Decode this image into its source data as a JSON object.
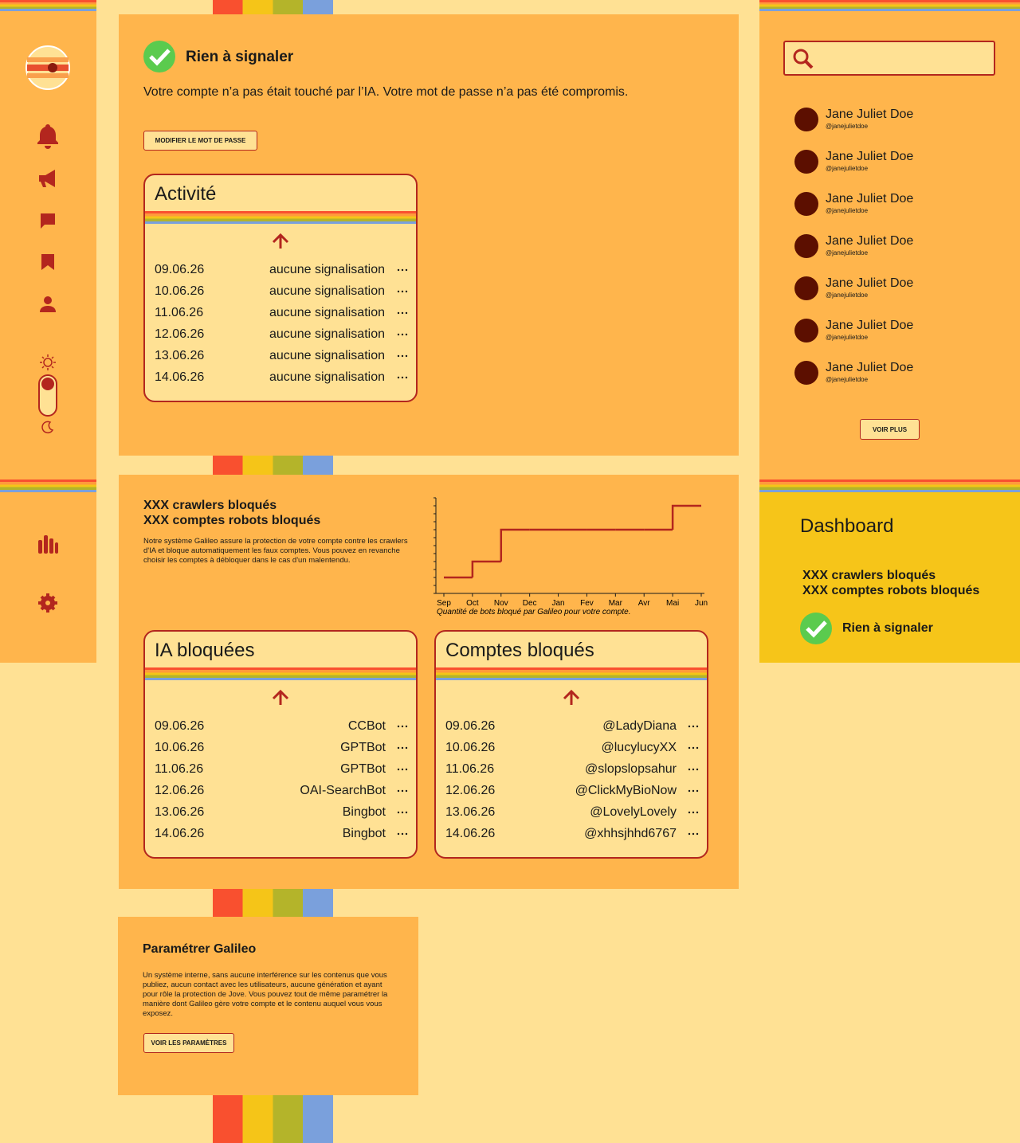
{
  "status": {
    "title": "Rien à signaler",
    "message": "Votre compte n’a pas était touché par l’IA. Votre mot de passe n’a pas été compromis.",
    "button": "MODIFIER LE MOT DE PASSE"
  },
  "activity": {
    "title": "Activité",
    "rows": [
      [
        "09.06.26",
        "aucune signalisation"
      ],
      [
        "10.06.26",
        "aucune signalisation"
      ],
      [
        "11.06.26",
        "aucune signalisation"
      ],
      [
        "12.06.26",
        "aucune signalisation"
      ],
      [
        "13.06.26",
        "aucune signalisation"
      ],
      [
        "14.06.26",
        "aucune signalisation"
      ]
    ]
  },
  "blocked": {
    "crawlers": "XXX crawlers bloqués",
    "bots": "XXX comptes robots bloqués",
    "description": "Notre système Galileo assure la protection de votre compte contre les crawlers d'IA et bloque automatiquement les faux comptes. Vous pouvez en revanche choisir les comptes à débloquer dans le cas d'un malentendu."
  },
  "chart_data": {
    "type": "line",
    "drawstyle": "steps-post",
    "caption": "Quantité de bots bloqué par Galileo pour votre compte.",
    "categories": [
      "Sep",
      "Oct",
      "Nov",
      "Dec",
      "Jan",
      "Fev",
      "Mar",
      "Avr",
      "Mai",
      "Jun"
    ],
    "values": [
      2,
      4,
      8,
      8,
      8,
      8,
      8,
      8,
      11,
      11
    ],
    "color": "#b3261e",
    "ylim": [
      0,
      12
    ],
    "yticks": [
      0,
      1,
      2,
      3,
      4,
      5,
      6,
      7,
      8,
      9,
      10,
      11,
      12
    ]
  },
  "ia_table": {
    "title": "IA bloquées",
    "rows": [
      [
        "09.06.26",
        "CCBot"
      ],
      [
        "10.06.26",
        "GPTBot"
      ],
      [
        "11.06.26",
        "GPTBot"
      ],
      [
        "12.06.26",
        "OAI-SearchBot"
      ],
      [
        "13.06.26",
        "Bingbot"
      ],
      [
        "14.06.26",
        "Bingbot"
      ]
    ]
  },
  "accounts_table": {
    "title": "Comptes bloqués",
    "rows": [
      [
        "09.06.26",
        "@LadyDiana"
      ],
      [
        "10.06.26",
        "@lucylucyXX"
      ],
      [
        "11.06.26",
        "@slopslopsahur"
      ],
      [
        "12.06.26",
        "@ClickMyBioNow"
      ],
      [
        "13.06.26",
        "@LovelyLovely"
      ],
      [
        "14.06.26",
        "@xhhsjhhd6767"
      ]
    ]
  },
  "settings": {
    "title": "Paramétrer Galileo",
    "description": "Un système interne, sans aucune interférence sur les contenus que vous publiez, aucun contact avec les utilisateurs, aucune génération et ayant pour rôle la protection de Jove. Vous pouvez tout de même paramétrer la manière dont Galileo gère votre compte et le contenu auquel vous vous exposez.",
    "button": "VOIR LES PARAMÈTRES"
  },
  "users": [
    {
      "name": "Jane Juliet Doe",
      "handle": "@janejulietdoe"
    },
    {
      "name": "Jane Juliet Doe",
      "handle": "@janejulietdoe"
    },
    {
      "name": "Jane Juliet Doe",
      "handle": "@janejulietdoe"
    },
    {
      "name": "Jane Juliet Doe",
      "handle": "@janejulietdoe"
    },
    {
      "name": "Jane Juliet Doe",
      "handle": "@janejulietdoe"
    },
    {
      "name": "Jane Juliet Doe",
      "handle": "@janejulietdoe"
    },
    {
      "name": "Jane Juliet Doe",
      "handle": "@janejulietdoe"
    }
  ],
  "more_button": "VOIR PLUS",
  "dashboard": {
    "title": "Dashboard",
    "crawlers": "XXX crawlers bloqués",
    "bots": "XXX comptes robots bloqués",
    "status": "Rien à signaler"
  }
}
